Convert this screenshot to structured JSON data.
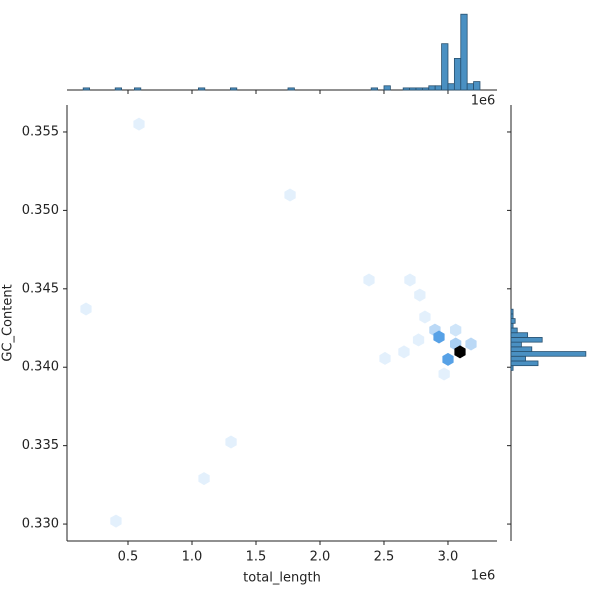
{
  "chart_data": {
    "type": "hexbin",
    "x_label": "total_length",
    "y_label": "GC_Content",
    "x_offset_label": "1e6",
    "x": [
      586000,
      1766000,
      172000,
      2383000,
      2703000,
      2780000,
      2898000,
      2930000,
      3060000,
      3180000,
      3000000,
      3094000,
      2508000,
      2656000,
      2970000,
      1305000,
      1094000,
      406000,
      2820000,
      3060000,
      2770000
    ],
    "y": [
      0.3555,
      0.35098,
      0.34371,
      0.34556,
      0.34556,
      0.3446,
      0.34237,
      0.34193,
      0.34148,
      0.34148,
      0.3405,
      0.34098,
      0.34056,
      0.34098,
      0.33957,
      0.33523,
      0.3329,
      0.33019,
      0.3432,
      0.34237,
      0.34174
    ],
    "counts": [
      1,
      1,
      1,
      1,
      1,
      1,
      3,
      8,
      4,
      3,
      8,
      20,
      1,
      1,
      1,
      1,
      1,
      1,
      1,
      2,
      1
    ],
    "colormap": [
      "#f7fbff",
      "#2f8be0",
      "#000000"
    ],
    "xlim": [
      23400,
      3383000
    ],
    "ylim": [
      0.32892,
      0.35672
    ],
    "xticks": [
      {
        "value": 500000,
        "label": "0.5"
      },
      {
        "value": 1000000,
        "label": "1.0"
      },
      {
        "value": 1500000,
        "label": "1.5"
      },
      {
        "value": 2000000,
        "label": "2.0"
      },
      {
        "value": 2500000,
        "label": "2.5"
      },
      {
        "value": 3000000,
        "label": "3.0"
      }
    ],
    "yticks": [
      {
        "value": 0.33,
        "label": "0.330"
      },
      0.335,
      {
        "value": 0.34,
        "label": "0.340"
      },
      0.345,
      {
        "value": 0.35,
        "label": "0.350"
      },
      0.355
    ],
    "hist_color": "#4a90c2",
    "x_hist": {
      "ylim": [
        0,
        38
      ],
      "bins": [
        100000,
        150000,
        200000,
        250000,
        300000,
        350000,
        400000,
        450000,
        500000,
        550000,
        600000,
        650000,
        700000,
        750000,
        800000,
        850000,
        900000,
        950000,
        1000000,
        1050000,
        1100000,
        1150000,
        1200000,
        1250000,
        1300000,
        1350000,
        1400000,
        1450000,
        1500000,
        1550000,
        1600000,
        1650000,
        1700000,
        1750000,
        1800000,
        1850000,
        1900000,
        1950000,
        2000000,
        2050000,
        2100000,
        2150000,
        2200000,
        2250000,
        2300000,
        2350000,
        2400000,
        2450000,
        2500000,
        2550000,
        2600000,
        2650000,
        2700000,
        2750000,
        2800000,
        2850000,
        2900000,
        2950000,
        3000000,
        3050000,
        3100000,
        3150000,
        3200000,
        3250000
      ],
      "counts": [
        0,
        1,
        0,
        0,
        0,
        0,
        1,
        0,
        0,
        1,
        0,
        0,
        0,
        0,
        0,
        0,
        0,
        0,
        0,
        1,
        0,
        0,
        0,
        0,
        1,
        0,
        0,
        0,
        0,
        0,
        0,
        0,
        0,
        1,
        0,
        0,
        0,
        0,
        0,
        0,
        0,
        0,
        0,
        0,
        0,
        0,
        1,
        0,
        2,
        0,
        0,
        1,
        1,
        1,
        1,
        2,
        2,
        22,
        3,
        15,
        36,
        3,
        4
      ]
    },
    "y_hist": {
      "xlim": [
        0,
        38
      ],
      "bins": [
        0.3398,
        0.3401,
        0.3404,
        0.3407,
        0.341,
        0.3413,
        0.3416,
        0.3419,
        0.3422,
        0.3425,
        0.3428,
        0.3431,
        0.3434,
        0.3437
      ],
      "counts": [
        1,
        13,
        7,
        36,
        10,
        5,
        15,
        8,
        3,
        1,
        2,
        1,
        1
      ]
    }
  }
}
